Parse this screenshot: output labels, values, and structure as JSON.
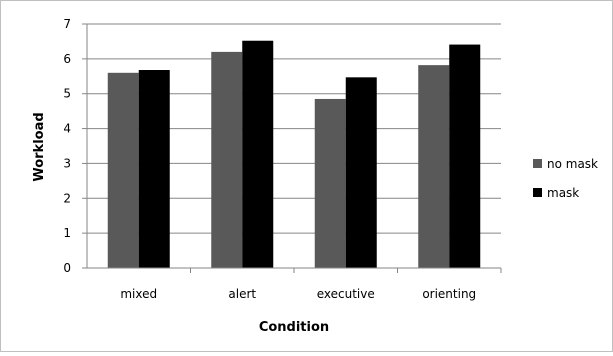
{
  "chart_data": {
    "type": "bar",
    "xlabel": "Condition",
    "ylabel": "Workload",
    "categories": [
      "mixed",
      "alert",
      "executive",
      "orienting"
    ],
    "ylim": [
      0,
      7
    ],
    "yticks": [
      0,
      1,
      2,
      3,
      4,
      5,
      6,
      7
    ],
    "grid": true,
    "legend_position": "right",
    "series": [
      {
        "name": "no mask",
        "color": "#595959",
        "values": [
          5.6,
          6.2,
          4.85,
          5.82
        ]
      },
      {
        "name": "mask",
        "color": "#000000",
        "values": [
          5.68,
          6.52,
          5.47,
          6.41
        ]
      }
    ]
  }
}
